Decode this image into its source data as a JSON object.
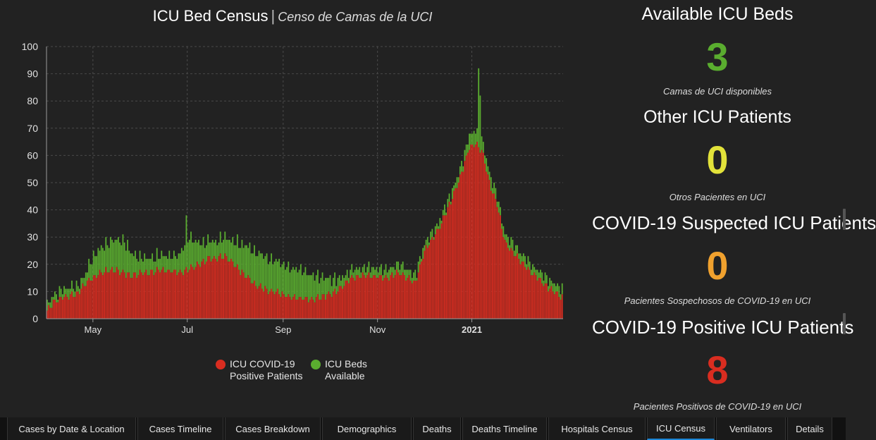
{
  "chart": {
    "title": "ICU Bed Census",
    "title_separator": "|",
    "subtitle": "Censo de Camas de la UCI"
  },
  "legend": {
    "covid_label": "ICU COVID-19 Positive Patients",
    "available_label": "ICU Beds Available"
  },
  "kpis": [
    {
      "title": "Available ICU Beds",
      "value": "3",
      "caption": "Camas de UCI disponibles",
      "color": "#5aad2f"
    },
    {
      "title": "Other ICU Patients",
      "value": "0",
      "caption": "Otros Pacientes en UCI",
      "color": "#e2e23a"
    },
    {
      "title": "COVID-19 Suspected ICU Patients",
      "value": "0",
      "caption": "Pacientes Sospechosos de COVID-19 en UCI",
      "color": "#f0a12e"
    },
    {
      "title": "COVID-19 Positive ICU Patients",
      "value": "8",
      "caption": "Pacientes Positivos de COVID-19 en UCI",
      "color": "#d92d20"
    }
  ],
  "tabs": [
    {
      "label": "Cases by Date & Location",
      "active": false
    },
    {
      "label": "Cases Timeline",
      "active": false
    },
    {
      "label": "Cases Breakdown",
      "active": false
    },
    {
      "label": "Demographics",
      "active": false
    },
    {
      "label": "Deaths",
      "active": false
    },
    {
      "label": "Deaths Timeline",
      "active": false
    },
    {
      "label": "Hospitals Census",
      "active": false
    },
    {
      "label": "ICU Census",
      "active": true
    },
    {
      "label": "Ventilators",
      "active": false
    },
    {
      "label": "Details",
      "active": false
    }
  ],
  "chart_data": {
    "type": "bar",
    "stacked": true,
    "title": "ICU Bed Census",
    "subtitle": "Censo de Camas de la UCI",
    "ylim": [
      0,
      100
    ],
    "yticks": [
      0,
      10,
      20,
      30,
      40,
      50,
      60,
      70,
      80,
      90,
      100
    ],
    "x_start": "2020-04-01",
    "x_end": "2021-02-28",
    "xticks": [
      {
        "label": "May",
        "date": "2020-05-01",
        "bold": false
      },
      {
        "label": "Jul",
        "date": "2020-07-01",
        "bold": false
      },
      {
        "label": "Sep",
        "date": "2020-09-01",
        "bold": false
      },
      {
        "label": "Nov",
        "date": "2020-11-01",
        "bold": false
      },
      {
        "label": "2021",
        "date": "2021-01-01",
        "bold": true
      }
    ],
    "grid": true,
    "legend_position": "bottom",
    "colors": {
      "covid": "#d92d20",
      "available": "#5aad2f"
    },
    "series_covid_anchors": [
      [
        "2020-04-01",
        3
      ],
      [
        "2020-04-05",
        6
      ],
      [
        "2020-04-12",
        8
      ],
      [
        "2020-04-20",
        9
      ],
      [
        "2020-04-28",
        14
      ],
      [
        "2020-05-05",
        17
      ],
      [
        "2020-05-15",
        18
      ],
      [
        "2020-05-25",
        16
      ],
      [
        "2020-06-05",
        17
      ],
      [
        "2020-06-15",
        18
      ],
      [
        "2020-06-25",
        17
      ],
      [
        "2020-07-05",
        19
      ],
      [
        "2020-07-15",
        22
      ],
      [
        "2020-07-25",
        23
      ],
      [
        "2020-08-05",
        17
      ],
      [
        "2020-08-15",
        12
      ],
      [
        "2020-08-25",
        10
      ],
      [
        "2020-09-05",
        8
      ],
      [
        "2020-09-20",
        7
      ],
      [
        "2020-10-05",
        10
      ],
      [
        "2020-10-15",
        15
      ],
      [
        "2020-10-25",
        16
      ],
      [
        "2020-11-05",
        15
      ],
      [
        "2020-11-15",
        17
      ],
      [
        "2020-11-25",
        13
      ],
      [
        "2020-12-01",
        25
      ],
      [
        "2020-12-10",
        33
      ],
      [
        "2020-12-18",
        43
      ],
      [
        "2020-12-24",
        52
      ],
      [
        "2020-12-30",
        63
      ],
      [
        "2021-01-03",
        64
      ],
      [
        "2021-01-07",
        62
      ],
      [
        "2021-01-12",
        50
      ],
      [
        "2021-01-17",
        42
      ],
      [
        "2021-01-22",
        28
      ],
      [
        "2021-02-01",
        21
      ],
      [
        "2021-02-10",
        16
      ],
      [
        "2021-02-20",
        11
      ],
      [
        "2021-02-28",
        8
      ]
    ],
    "series_available_anchors": [
      [
        "2020-04-01",
        2
      ],
      [
        "2020-04-10",
        3
      ],
      [
        "2020-04-25",
        3
      ],
      [
        "2020-05-01",
        8
      ],
      [
        "2020-05-10",
        10
      ],
      [
        "2020-05-20",
        12
      ],
      [
        "2020-05-30",
        6
      ],
      [
        "2020-06-10",
        5
      ],
      [
        "2020-06-25",
        6
      ],
      [
        "2020-07-01",
        12
      ],
      [
        "2020-07-10",
        7
      ],
      [
        "2020-07-20",
        6
      ],
      [
        "2020-07-30",
        8
      ],
      [
        "2020-08-10",
        12
      ],
      [
        "2020-08-20",
        12
      ],
      [
        "2020-09-01",
        11
      ],
      [
        "2020-09-15",
        10
      ],
      [
        "2020-09-30",
        6
      ],
      [
        "2020-10-10",
        3
      ],
      [
        "2020-10-25",
        3
      ],
      [
        "2020-11-10",
        3
      ],
      [
        "2020-11-25",
        3
      ],
      [
        "2020-12-10",
        2
      ],
      [
        "2020-12-25",
        3
      ],
      [
        "2021-01-01",
        5
      ],
      [
        "2021-01-10",
        4
      ],
      [
        "2021-01-20",
        3
      ],
      [
        "2021-02-05",
        3
      ],
      [
        "2021-02-20",
        3
      ],
      [
        "2021-02-28",
        3
      ]
    ],
    "spikes": [
      {
        "date": "2020-06-30",
        "total": 38
      },
      {
        "date": "2021-01-05",
        "total": 92
      },
      {
        "date": "2021-01-06",
        "total": 82
      }
    ]
  }
}
